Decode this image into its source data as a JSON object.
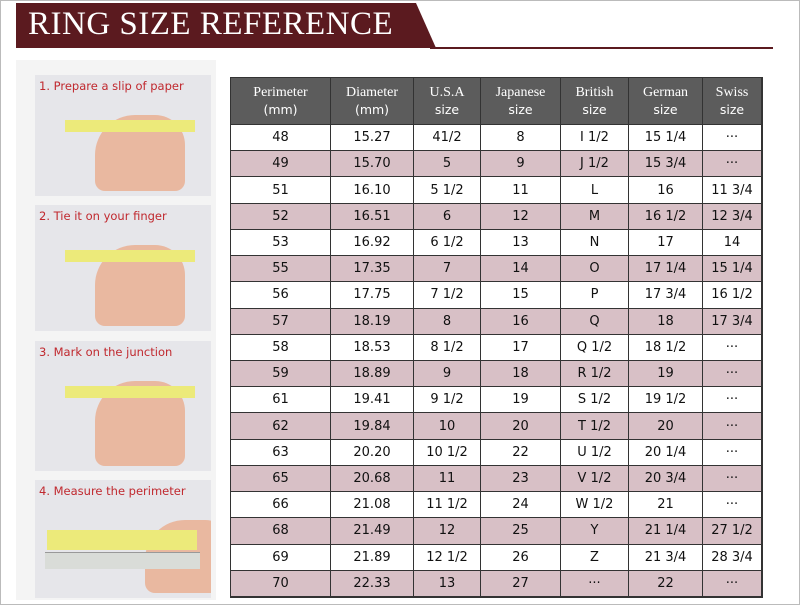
{
  "header": {
    "title": "RING SIZE REFERENCE"
  },
  "steps": [
    "1. Prepare a slip of paper",
    "2. Tie it on your finger",
    "3. Mark on the junction",
    "4. Measure the perimeter"
  ],
  "table": {
    "columns": [
      {
        "name": "Perimeter",
        "unit": "(mm)"
      },
      {
        "name": "Diameter",
        "unit": "(mm)"
      },
      {
        "name": "U.S.A",
        "unit": "size"
      },
      {
        "name": "Japanese",
        "unit": "size"
      },
      {
        "name": "British",
        "unit": "size"
      },
      {
        "name": "German",
        "unit": "size"
      },
      {
        "name": "Swiss",
        "unit": "size"
      }
    ],
    "rows": [
      [
        "48",
        "15.27",
        "41/2",
        "8",
        "I 1/2",
        "15 1/4",
        "···"
      ],
      [
        "49",
        "15.70",
        "5",
        "9",
        "J 1/2",
        "15 3/4",
        "···"
      ],
      [
        "51",
        "16.10",
        "5 1/2",
        "11",
        "L",
        "16",
        "11 3/4"
      ],
      [
        "52",
        "16.51",
        "6",
        "12",
        "M",
        "16 1/2",
        "12 3/4"
      ],
      [
        "53",
        "16.92",
        "6 1/2",
        "13",
        "N",
        "17",
        "14"
      ],
      [
        "55",
        "17.35",
        "7",
        "14",
        "O",
        "17 1/4",
        "15 1/4"
      ],
      [
        "56",
        "17.75",
        "7 1/2",
        "15",
        "P",
        "17 3/4",
        "16 1/2"
      ],
      [
        "57",
        "18.19",
        "8",
        "16",
        "Q",
        "18",
        "17 3/4"
      ],
      [
        "58",
        "18.53",
        "8 1/2",
        "17",
        "Q 1/2",
        "18 1/2",
        "···"
      ],
      [
        "59",
        "18.89",
        "9",
        "18",
        "R 1/2",
        "19",
        "···"
      ],
      [
        "61",
        "19.41",
        "9 1/2",
        "19",
        "S 1/2",
        "19 1/2",
        "···"
      ],
      [
        "62",
        "19.84",
        "10",
        "20",
        "T 1/2",
        "20",
        "···"
      ],
      [
        "63",
        "20.20",
        "10 1/2",
        "22",
        "U 1/2",
        "20 1/4",
        "···"
      ],
      [
        "65",
        "20.68",
        "11",
        "23",
        "V 1/2",
        "20 3/4",
        "···"
      ],
      [
        "66",
        "21.08",
        "11 1/2",
        "24",
        "W 1/2",
        "21",
        "···"
      ],
      [
        "68",
        "21.49",
        "12",
        "25",
        "Y",
        "21 1/4",
        "27 1/2"
      ],
      [
        "69",
        "21.89",
        "12 1/2",
        "26",
        "Z",
        "21 3/4",
        "28 3/4"
      ],
      [
        "70",
        "22.33",
        "13",
        "27",
        "···",
        "22",
        "···"
      ]
    ]
  }
}
